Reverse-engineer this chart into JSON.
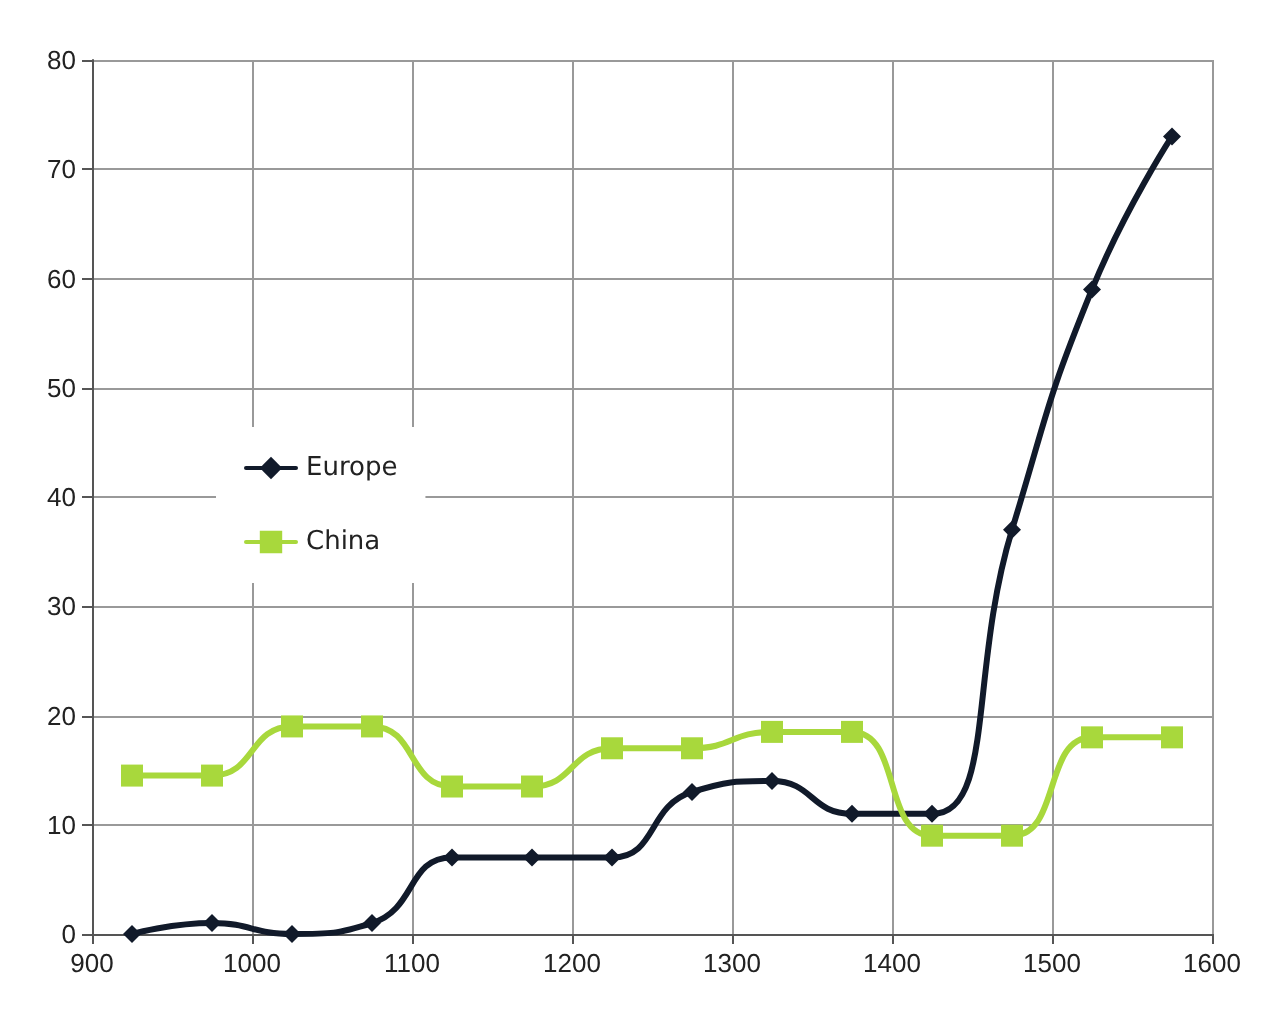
{
  "chart_data": {
    "type": "line",
    "x": [
      925,
      975,
      1025,
      1075,
      1125,
      1175,
      1225,
      1275,
      1325,
      1375,
      1425,
      1475,
      1525,
      1575
    ],
    "series": [
      {
        "name": "Europe",
        "color": "#111a2a",
        "marker": "diamond",
        "values": [
          0,
          1,
          0,
          1,
          7,
          7,
          7,
          13,
          14,
          11,
          11,
          37,
          59,
          73
        ]
      },
      {
        "name": "China",
        "color": "#a8d83c",
        "marker": "square",
        "values": [
          14.5,
          14.5,
          19,
          19,
          13.5,
          13.5,
          17,
          17,
          18.5,
          18.5,
          9,
          9,
          18,
          18
        ]
      }
    ],
    "xlim": [
      900,
      1600
    ],
    "xticks": [
      900,
      1000,
      1100,
      1200,
      1300,
      1400,
      1500,
      1600
    ],
    "ylim": [
      0,
      80
    ],
    "yticks": [
      0,
      10,
      20,
      30,
      40,
      50,
      60,
      70,
      80
    ],
    "grid": true,
    "legend": "left",
    "line_style": "solid"
  }
}
